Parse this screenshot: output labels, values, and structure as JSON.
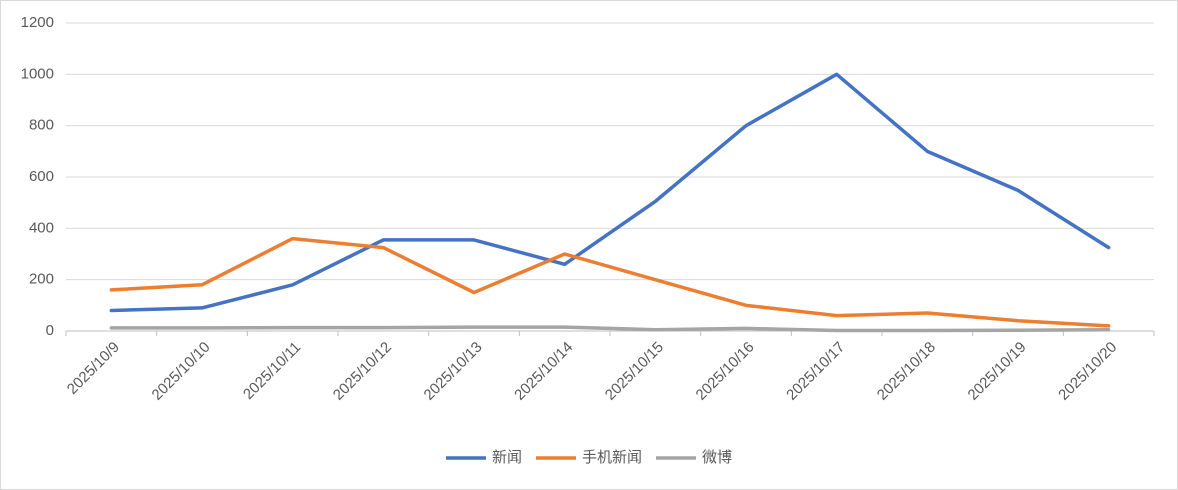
{
  "chart_data": {
    "type": "line",
    "categories": [
      "2025/10/9",
      "2025/10/10",
      "2025/10/11",
      "2025/10/12",
      "2025/10/13",
      "2025/10/14",
      "2025/10/15",
      "2025/10/16",
      "2025/10/17",
      "2025/10/18",
      "2025/10/19",
      "2025/10/20"
    ],
    "series": [
      {
        "name": "新闻",
        "color": "#4472c4",
        "values": [
          80,
          90,
          180,
          355,
          355,
          260,
          505,
          800,
          1000,
          700,
          548,
          325
        ]
      },
      {
        "name": "手机新闻",
        "color": "#ed7d31",
        "values": [
          160,
          180,
          360,
          325,
          150,
          300,
          200,
          100,
          60,
          70,
          40,
          20
        ]
      },
      {
        "name": "微博",
        "color": "#a5a5a5",
        "values": [
          12,
          12,
          13,
          13,
          15,
          15,
          5,
          10,
          2,
          2,
          3,
          5
        ]
      }
    ],
    "ylim": [
      0,
      1200
    ],
    "yticks": [
      0,
      200,
      400,
      600,
      800,
      1000,
      1200
    ],
    "grid": true,
    "legend": "bottom"
  }
}
